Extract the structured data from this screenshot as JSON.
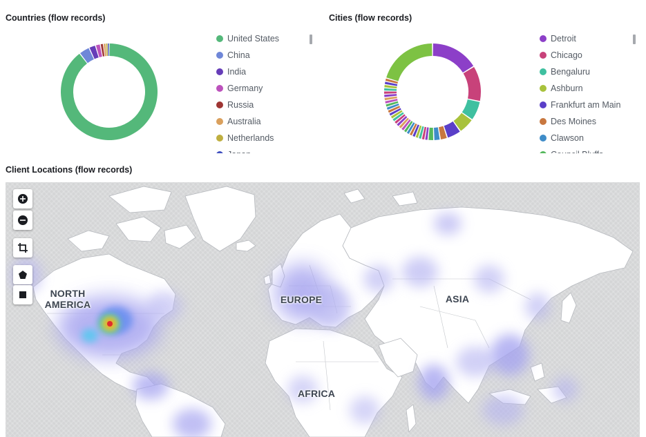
{
  "countries_panel": {
    "title": "Countries (flow records)",
    "legend": [
      {
        "label": "United States",
        "color": "#54b87a"
      },
      {
        "label": "China",
        "color": "#6f87d8"
      },
      {
        "label": "India",
        "color": "#663db8"
      },
      {
        "label": "Germany",
        "color": "#bc52bc"
      },
      {
        "label": "Russia",
        "color": "#9e3533"
      },
      {
        "label": "Australia",
        "color": "#daa05d"
      },
      {
        "label": "Netherlands",
        "color": "#bfaf40"
      },
      {
        "label": "Japan",
        "color": "#4050bf"
      }
    ]
  },
  "cities_panel": {
    "title": "Cities (flow records)",
    "legend": [
      {
        "label": "Detroit",
        "color": "#8c3fc8"
      },
      {
        "label": "Chicago",
        "color": "#c8427a"
      },
      {
        "label": "Bengaluru",
        "color": "#3fc0a0"
      },
      {
        "label": "Ashburn",
        "color": "#a8c23c"
      },
      {
        "label": "Frankfurt am Main",
        "color": "#5a3fc8"
      },
      {
        "label": "Des Moines",
        "color": "#c8773f"
      },
      {
        "label": "Clawson",
        "color": "#3f8cc8"
      },
      {
        "label": "Council Bluffs",
        "color": "#54b85c"
      }
    ]
  },
  "map_panel": {
    "title": "Client Locations (flow records)",
    "continents": {
      "north_america": "NORTH\nAMERICA",
      "europe": "EUROPE",
      "asia": "ASIA",
      "africa": "AFRICA"
    }
  },
  "chart_data": [
    {
      "type": "pie",
      "title": "Countries (flow records)",
      "donut": true,
      "categories": [
        "United States",
        "China",
        "India",
        "Germany",
        "Russia",
        "Australia",
        "Netherlands",
        "Japan"
      ],
      "values": [
        88.0,
        3.5,
        2.2,
        1.6,
        1.0,
        0.8,
        0.6,
        0.5
      ],
      "colors": [
        "#54b87a",
        "#6f87d8",
        "#663db8",
        "#bc52bc",
        "#9e3533",
        "#daa05d",
        "#bfaf40",
        "#4050bf"
      ],
      "legend": "right"
    },
    {
      "type": "pie",
      "title": "Cities (flow records)",
      "donut": true,
      "categories": [
        "Detroit",
        "Chicago",
        "Bengaluru",
        "Ashburn",
        "Frankfurt am Main",
        "Des Moines",
        "Clawson",
        "Council Bluffs"
      ],
      "values": [
        13.5,
        10.0,
        5.5,
        4.5,
        4.0,
        2.0,
        1.8,
        1.6
      ],
      "tail_count": 26,
      "tail_value_each": 0.9,
      "last_value": 17.0,
      "colors": [
        "#8c3fc8",
        "#c8427a",
        "#3fc0a0",
        "#a8c23c",
        "#5a3fc8",
        "#c8773f",
        "#3f8cc8",
        "#54b85c"
      ],
      "last_color": "#7dc243",
      "legend": "right"
    }
  ]
}
